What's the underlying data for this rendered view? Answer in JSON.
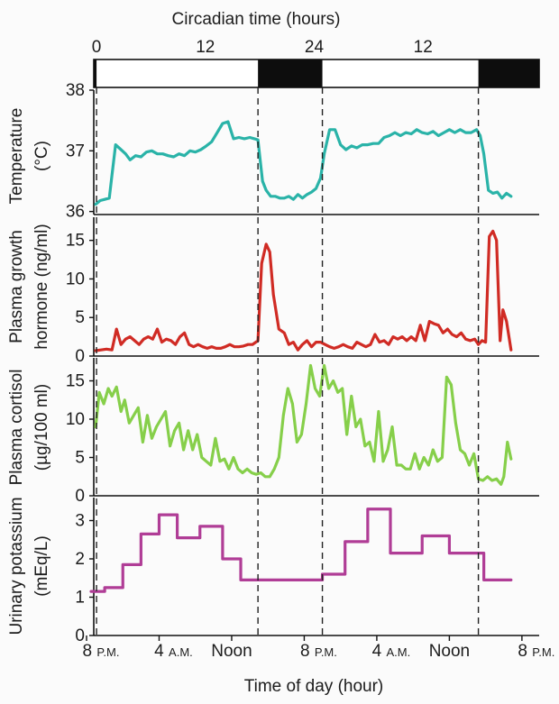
{
  "chart_data": {
    "type": "line",
    "top_axis_title": "Circadian time (hours)",
    "top_axis_ticks": [
      {
        "label": "0",
        "hour": 0
      },
      {
        "label": "12",
        "hour": 12
      },
      {
        "label": "24",
        "hour": 24
      },
      {
        "label": "12",
        "hour": 36
      }
    ],
    "xlabel": "Time of day (hour)",
    "x_ticks": [
      {
        "label": "8",
        "suffix": "P.M.",
        "hour": 0
      },
      {
        "label": "4",
        "suffix": "A.M.",
        "hour": 8
      },
      {
        "label": "Noon",
        "suffix": "",
        "hour": 16
      },
      {
        "label": "8",
        "suffix": "P.M.",
        "hour": 24
      },
      {
        "label": "4",
        "suffix": "A.M.",
        "hour": 32
      },
      {
        "label": "Noon",
        "suffix": "",
        "hour": 40
      },
      {
        "label": "8",
        "suffix": "P.M.",
        "hour": 48
      }
    ],
    "xlim": [
      0,
      50
    ],
    "dark_periods": [
      [
        -1.2,
        1.1
      ],
      [
        18.9,
        26.0
      ],
      [
        43.2,
        51.5
      ]
    ],
    "dashed_lines": [
      1.1,
      18.9,
      26.0,
      43.2
    ],
    "panels": [
      {
        "id": "temperature",
        "ylabel": [
          "Temperature",
          "(°C)"
        ],
        "yticks": [
          36,
          37,
          38
        ],
        "ylim": [
          35.95,
          38.0
        ],
        "color": "#2ab3a8",
        "step": false,
        "x": [
          1,
          1.5,
          2,
          2.5,
          2.8,
          3.2,
          3.8,
          4.3,
          4.8,
          5.4,
          6,
          6.6,
          7.2,
          7.8,
          8.4,
          9,
          9.6,
          10.2,
          10.8,
          11.4,
          12,
          12.6,
          13.2,
          13.8,
          14.4,
          15,
          15.6,
          16.2,
          16.8,
          17.4,
          18,
          18.5,
          18.9,
          19.4,
          19.8,
          20.3,
          20.8,
          21.3,
          21.8,
          22.3,
          22.8,
          23.3,
          23.8,
          24.3,
          24.8,
          25.3,
          25.8,
          26.2,
          26.8,
          27.4,
          28,
          28.6,
          29.2,
          29.8,
          30.4,
          31,
          31.6,
          32.2,
          32.8,
          33.4,
          34,
          34.6,
          35.2,
          35.8,
          36.4,
          37,
          37.6,
          38.2,
          38.8,
          39.4,
          40,
          40.6,
          41.2,
          41.8,
          42.4,
          43,
          43.4,
          43.8,
          44.3,
          44.8,
          45.3,
          45.8,
          46.3,
          46.8
        ],
        "values": [
          36.12,
          36.18,
          36.2,
          36.22,
          36.6,
          37.1,
          37.02,
          36.95,
          36.85,
          36.92,
          36.9,
          36.98,
          37,
          36.95,
          36.95,
          36.92,
          36.9,
          36.95,
          36.92,
          37,
          36.98,
          37.02,
          37.08,
          37.15,
          37.3,
          37.45,
          37.48,
          37.2,
          37.22,
          37.2,
          37.22,
          37.2,
          37.18,
          36.5,
          36.35,
          36.25,
          36.25,
          36.22,
          36.22,
          36.25,
          36.2,
          36.28,
          36.22,
          36.28,
          36.32,
          36.38,
          36.55,
          36.95,
          37.35,
          37.35,
          37.1,
          37.02,
          37.08,
          37.05,
          37.1,
          37.1,
          37.12,
          37.12,
          37.22,
          37.25,
          37.3,
          37.25,
          37.3,
          37.28,
          37.35,
          37.3,
          37.28,
          37.32,
          37.25,
          37.3,
          37.35,
          37.3,
          37.35,
          37.3,
          37.3,
          37.35,
          37.25,
          36.95,
          36.35,
          36.3,
          36.32,
          36.22,
          36.3,
          36.25
        ]
      },
      {
        "id": "growth-hormone",
        "ylabel": [
          "Plasma growth",
          "hormone (ng/ml)"
        ],
        "yticks": [
          0,
          5,
          10,
          15
        ],
        "ylim": [
          0,
          18
        ],
        "color": "#d02b24",
        "step": false,
        "x": [
          1,
          1.6,
          2.2,
          2.8,
          3.3,
          3.8,
          4.3,
          4.8,
          5.3,
          5.8,
          6.3,
          6.8,
          7.3,
          7.8,
          8.3,
          8.8,
          9.3,
          9.8,
          10.3,
          10.8,
          11.3,
          11.8,
          12.3,
          12.8,
          13.3,
          13.8,
          14.3,
          14.8,
          15.3,
          15.8,
          16.3,
          16.8,
          17.3,
          17.8,
          18.3,
          18.9,
          19.3,
          19.8,
          20.2,
          20.6,
          21.2,
          21.8,
          22.3,
          22.8,
          23.3,
          23.8,
          24.3,
          24.8,
          25.3,
          25.8,
          26.3,
          26.8,
          27.3,
          27.8,
          28.3,
          28.8,
          29.3,
          29.8,
          30.3,
          30.8,
          31.3,
          31.8,
          32.3,
          32.8,
          33.3,
          33.8,
          34.3,
          34.8,
          35.3,
          35.8,
          36.3,
          36.8,
          37.3,
          37.8,
          38.3,
          38.8,
          39.3,
          39.8,
          40.3,
          40.8,
          41.3,
          41.8,
          42.3,
          42.8,
          43.2,
          43.6,
          44,
          44.4,
          44.8,
          45.2,
          45.6,
          45.9,
          46.3,
          46.8
        ],
        "values": [
          0.7,
          0.8,
          0.9,
          0.8,
          3.5,
          1.5,
          2.2,
          2.5,
          2.0,
          1.5,
          2.2,
          2.5,
          2.2,
          3.5,
          1.8,
          2.2,
          2.0,
          1.5,
          2.5,
          3.0,
          1.5,
          1.2,
          1.5,
          1.2,
          1.0,
          1.2,
          1.0,
          1.0,
          1.2,
          1.5,
          1.2,
          1.2,
          1.3,
          1.5,
          1.5,
          2.0,
          12.0,
          14.5,
          13.5,
          8.0,
          3.5,
          3.0,
          1.5,
          1.8,
          0.8,
          1.5,
          2.0,
          1.2,
          1.8,
          1.8,
          1.5,
          1.2,
          1.0,
          1.2,
          1.5,
          1.2,
          1.0,
          1.8,
          1.5,
          1.2,
          1.5,
          2.8,
          1.8,
          2.0,
          1.5,
          2.5,
          2.2,
          2.5,
          2.0,
          2.5,
          2.0,
          4.0,
          2.0,
          4.5,
          4.2,
          4.0,
          3.0,
          3.5,
          2.8,
          2.5,
          3.0,
          2.2,
          2.0,
          2.2,
          1.5,
          2.0,
          1.8,
          15.5,
          16.2,
          15.0,
          2.0,
          6.0,
          4.5,
          0.8
        ]
      },
      {
        "id": "cortisol",
        "ylabel": [
          "Plasma cortisol",
          "(µg/100 ml)"
        ],
        "yticks": [
          0,
          5,
          10,
          15
        ],
        "ylim": [
          0,
          18
        ],
        "color": "#86cf4a",
        "step": false,
        "x": [
          1,
          1.4,
          1.9,
          2.4,
          2.8,
          3.3,
          3.8,
          4.2,
          4.7,
          5.2,
          5.7,
          6.2,
          6.7,
          7.2,
          7.7,
          8.2,
          8.7,
          9.2,
          9.7,
          10.2,
          10.7,
          11.2,
          11.7,
          12.2,
          12.7,
          13.2,
          13.7,
          14.2,
          14.7,
          15.2,
          15.7,
          16.2,
          16.7,
          17.2,
          17.7,
          18.2,
          18.7,
          19.2,
          19.7,
          20.2,
          20.7,
          21.2,
          21.7,
          22.2,
          22.7,
          23.2,
          23.7,
          24.2,
          24.7,
          25.2,
          25.7,
          26.2,
          26.7,
          27.2,
          27.7,
          28.2,
          28.7,
          29.2,
          29.7,
          30.2,
          30.7,
          31.2,
          31.7,
          32.2,
          32.7,
          33.2,
          33.7,
          34.2,
          34.7,
          35.2,
          35.7,
          36.2,
          36.7,
          37.2,
          37.7,
          38.2,
          38.7,
          39.2,
          39.7,
          40.2,
          40.7,
          41.2,
          41.7,
          42.2,
          42.7,
          43.2,
          43.7,
          44.2,
          44.7,
          45.2,
          45.7,
          46,
          46.4,
          46.8
        ],
        "values": [
          9.0,
          13.5,
          12.0,
          14.0,
          13.0,
          14.2,
          11.0,
          12.5,
          9.5,
          10.5,
          11.5,
          7.0,
          10.5,
          7.5,
          9.0,
          10.0,
          11.0,
          6.5,
          8.5,
          9.5,
          6.0,
          8.5,
          6.0,
          8.0,
          5.0,
          4.5,
          4.0,
          7.5,
          4.5,
          4.8,
          3.5,
          5.0,
          3.5,
          3.0,
          3.5,
          3.0,
          2.8,
          3.0,
          2.5,
          2.5,
          3.5,
          5.0,
          10.5,
          14.0,
          12.0,
          7.0,
          8.0,
          12.0,
          17.0,
          14.0,
          13.0,
          17.0,
          14.0,
          15.0,
          13.5,
          14.0,
          8.0,
          13.0,
          9.0,
          10.0,
          6.5,
          7.0,
          4.5,
          11.0,
          4.5,
          6.0,
          9.0,
          4.0,
          4.0,
          3.5,
          3.5,
          5.5,
          3.5,
          5.0,
          4.0,
          6.0,
          4.5,
          5.0,
          15.5,
          14.5,
          9.5,
          6.0,
          5.5,
          4.0,
          5.5,
          2.2,
          2.0,
          2.5,
          2.0,
          2.2,
          1.5,
          2.5,
          7.0,
          4.8
        ]
      },
      {
        "id": "potassium",
        "ylabel": [
          "Urinary potassium",
          "(mEq/L)"
        ],
        "yticks": [
          0,
          1,
          2,
          3
        ],
        "ylim": [
          0,
          3.6
        ],
        "color": "#b03d96",
        "step": true,
        "x": [
          0.5,
          2,
          4,
          6,
          8,
          10,
          12.5,
          15,
          17,
          20.5,
          26,
          28.5,
          31,
          33.5,
          37,
          40,
          43.8,
          46.8
        ],
        "values": [
          1.15,
          1.25,
          1.85,
          2.65,
          3.15,
          2.55,
          2.85,
          2.0,
          1.45,
          1.45,
          1.6,
          2.45,
          3.3,
          2.15,
          2.6,
          2.15,
          1.45,
          1.45
        ]
      }
    ]
  }
}
